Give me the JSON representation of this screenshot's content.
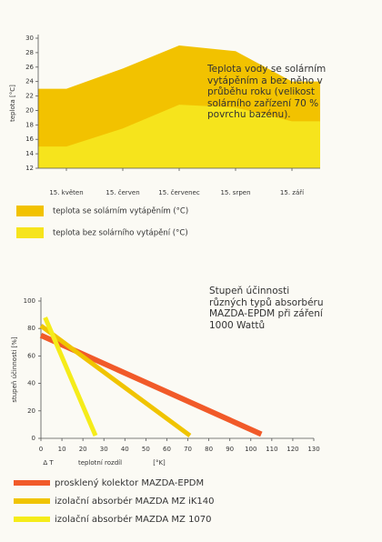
{
  "chart_data": [
    {
      "type": "area",
      "annotation": "Teplota vody se solárním vytápěním a bez něho v průběhu roku (velikost solárního zařízení 70 % povrchu bazénu).",
      "ylabel": "teplota [°C]",
      "categories": [
        "15. květen",
        "15. červen",
        "15. červenec",
        "15. srpen",
        "15. září"
      ],
      "ylim": [
        12,
        30
      ],
      "yticks": [
        12,
        14,
        16,
        18,
        20,
        22,
        24,
        26,
        28,
        30
      ],
      "series": [
        {
          "name": "teplota se solárním vytápěním (°C)",
          "color": "#f2c200",
          "values": [
            23,
            25.8,
            29,
            28.2,
            24
          ]
        },
        {
          "name": "teplota bez solárního vytápění (°C)",
          "color": "#f6e41c",
          "values": [
            15,
            17.5,
            20.8,
            20.4,
            18.5
          ]
        }
      ]
    },
    {
      "type": "line",
      "title": "Stupeň účinnosti různých typů absorbéru MAZDA-EPDM při záření 1000 Wattů",
      "ylabel": "stupeň účinnosti [%]",
      "xsymbol": "Δ T",
      "xlabel": "teplotní rozdíl",
      "xunit": "[°K]",
      "xlim": [
        0,
        130
      ],
      "xticks": [
        0,
        10,
        20,
        30,
        40,
        50,
        60,
        70,
        80,
        90,
        100,
        110,
        120,
        130
      ],
      "ylim": [
        0,
        100
      ],
      "yticks": [
        0,
        20,
        40,
        60,
        80,
        100
      ],
      "series": [
        {
          "name": "prosklený kolektor MAZDA-EPDM",
          "color": "#f15a29",
          "x": [
            0,
            105
          ],
          "values": [
            75,
            3
          ]
        },
        {
          "name": "izolační absorbér MAZDA MZ iK140",
          "color": "#f0c400",
          "x": [
            0,
            71
          ],
          "values": [
            82,
            2
          ]
        },
        {
          "name": "izolační absorbér MAZDA MZ 1070",
          "color": "#f5ec1a",
          "x": [
            2,
            26
          ],
          "values": [
            88,
            2
          ]
        }
      ]
    }
  ]
}
